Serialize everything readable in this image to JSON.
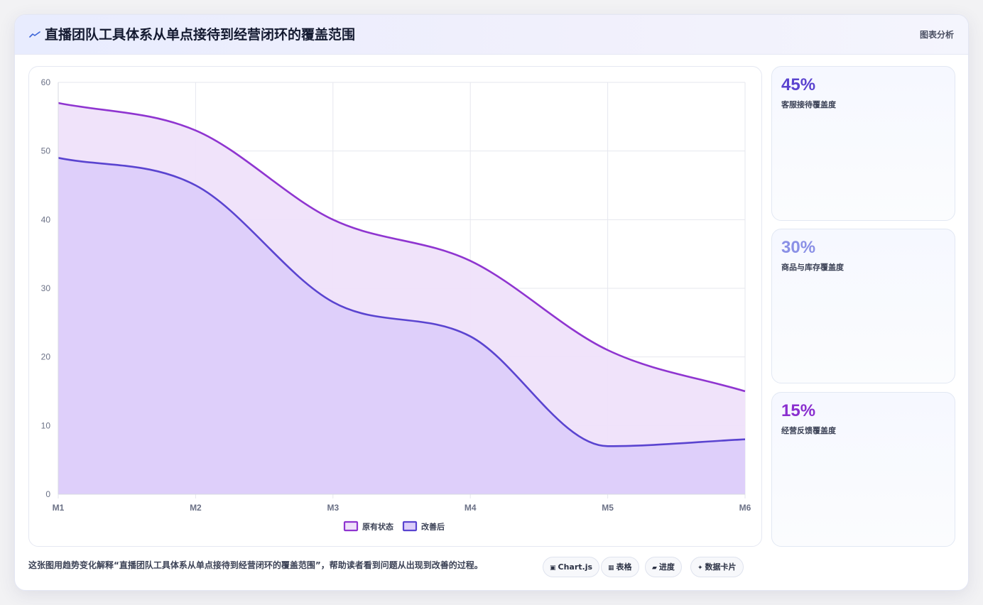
{
  "header": {
    "title": "直播团队工具体系从单点接待到经营闭环的覆盖范围",
    "tag": "图表分析"
  },
  "chart_data": {
    "type": "area",
    "categories": [
      "M1",
      "M2",
      "M3",
      "M4",
      "M5",
      "M6"
    ],
    "series": [
      {
        "name": "原有状态",
        "values": [
          57,
          53,
          40,
          34,
          21,
          15
        ],
        "color": "#8f35d0",
        "fill": "#efe1fa"
      },
      {
        "name": "改善后",
        "values": [
          49,
          45,
          28,
          23,
          7,
          8
        ],
        "color": "#5a44d0",
        "fill": "#dccefa"
      }
    ],
    "ylim": [
      0,
      60
    ],
    "yticks": [
      0,
      10,
      20,
      30,
      40,
      50,
      60
    ],
    "grid": true,
    "legend": "bottom-center"
  },
  "stats": [
    {
      "value": "45%",
      "label": "客服接待覆盖度",
      "color": "#5a43cf"
    },
    {
      "value": "30%",
      "label": "商品与库存覆盖度",
      "color": "#8a90e6"
    },
    {
      "value": "15%",
      "label": "经营反馈覆盖度",
      "color": "#8a2fcf"
    }
  ],
  "footer": {
    "text": "这张图用趋势变化解释“直播团队工具体系从单点接待到经营闭环的覆盖范围”，帮助读者看到问题从出现到改善的过程。",
    "chips": [
      {
        "icon": "chart-icon",
        "label": "Chart.js"
      },
      {
        "icon": "table-icon",
        "label": "表格"
      },
      {
        "icon": "progress-icon",
        "label": "进度"
      },
      {
        "icon": "sparkle-icon",
        "label": "数据卡片"
      }
    ]
  }
}
